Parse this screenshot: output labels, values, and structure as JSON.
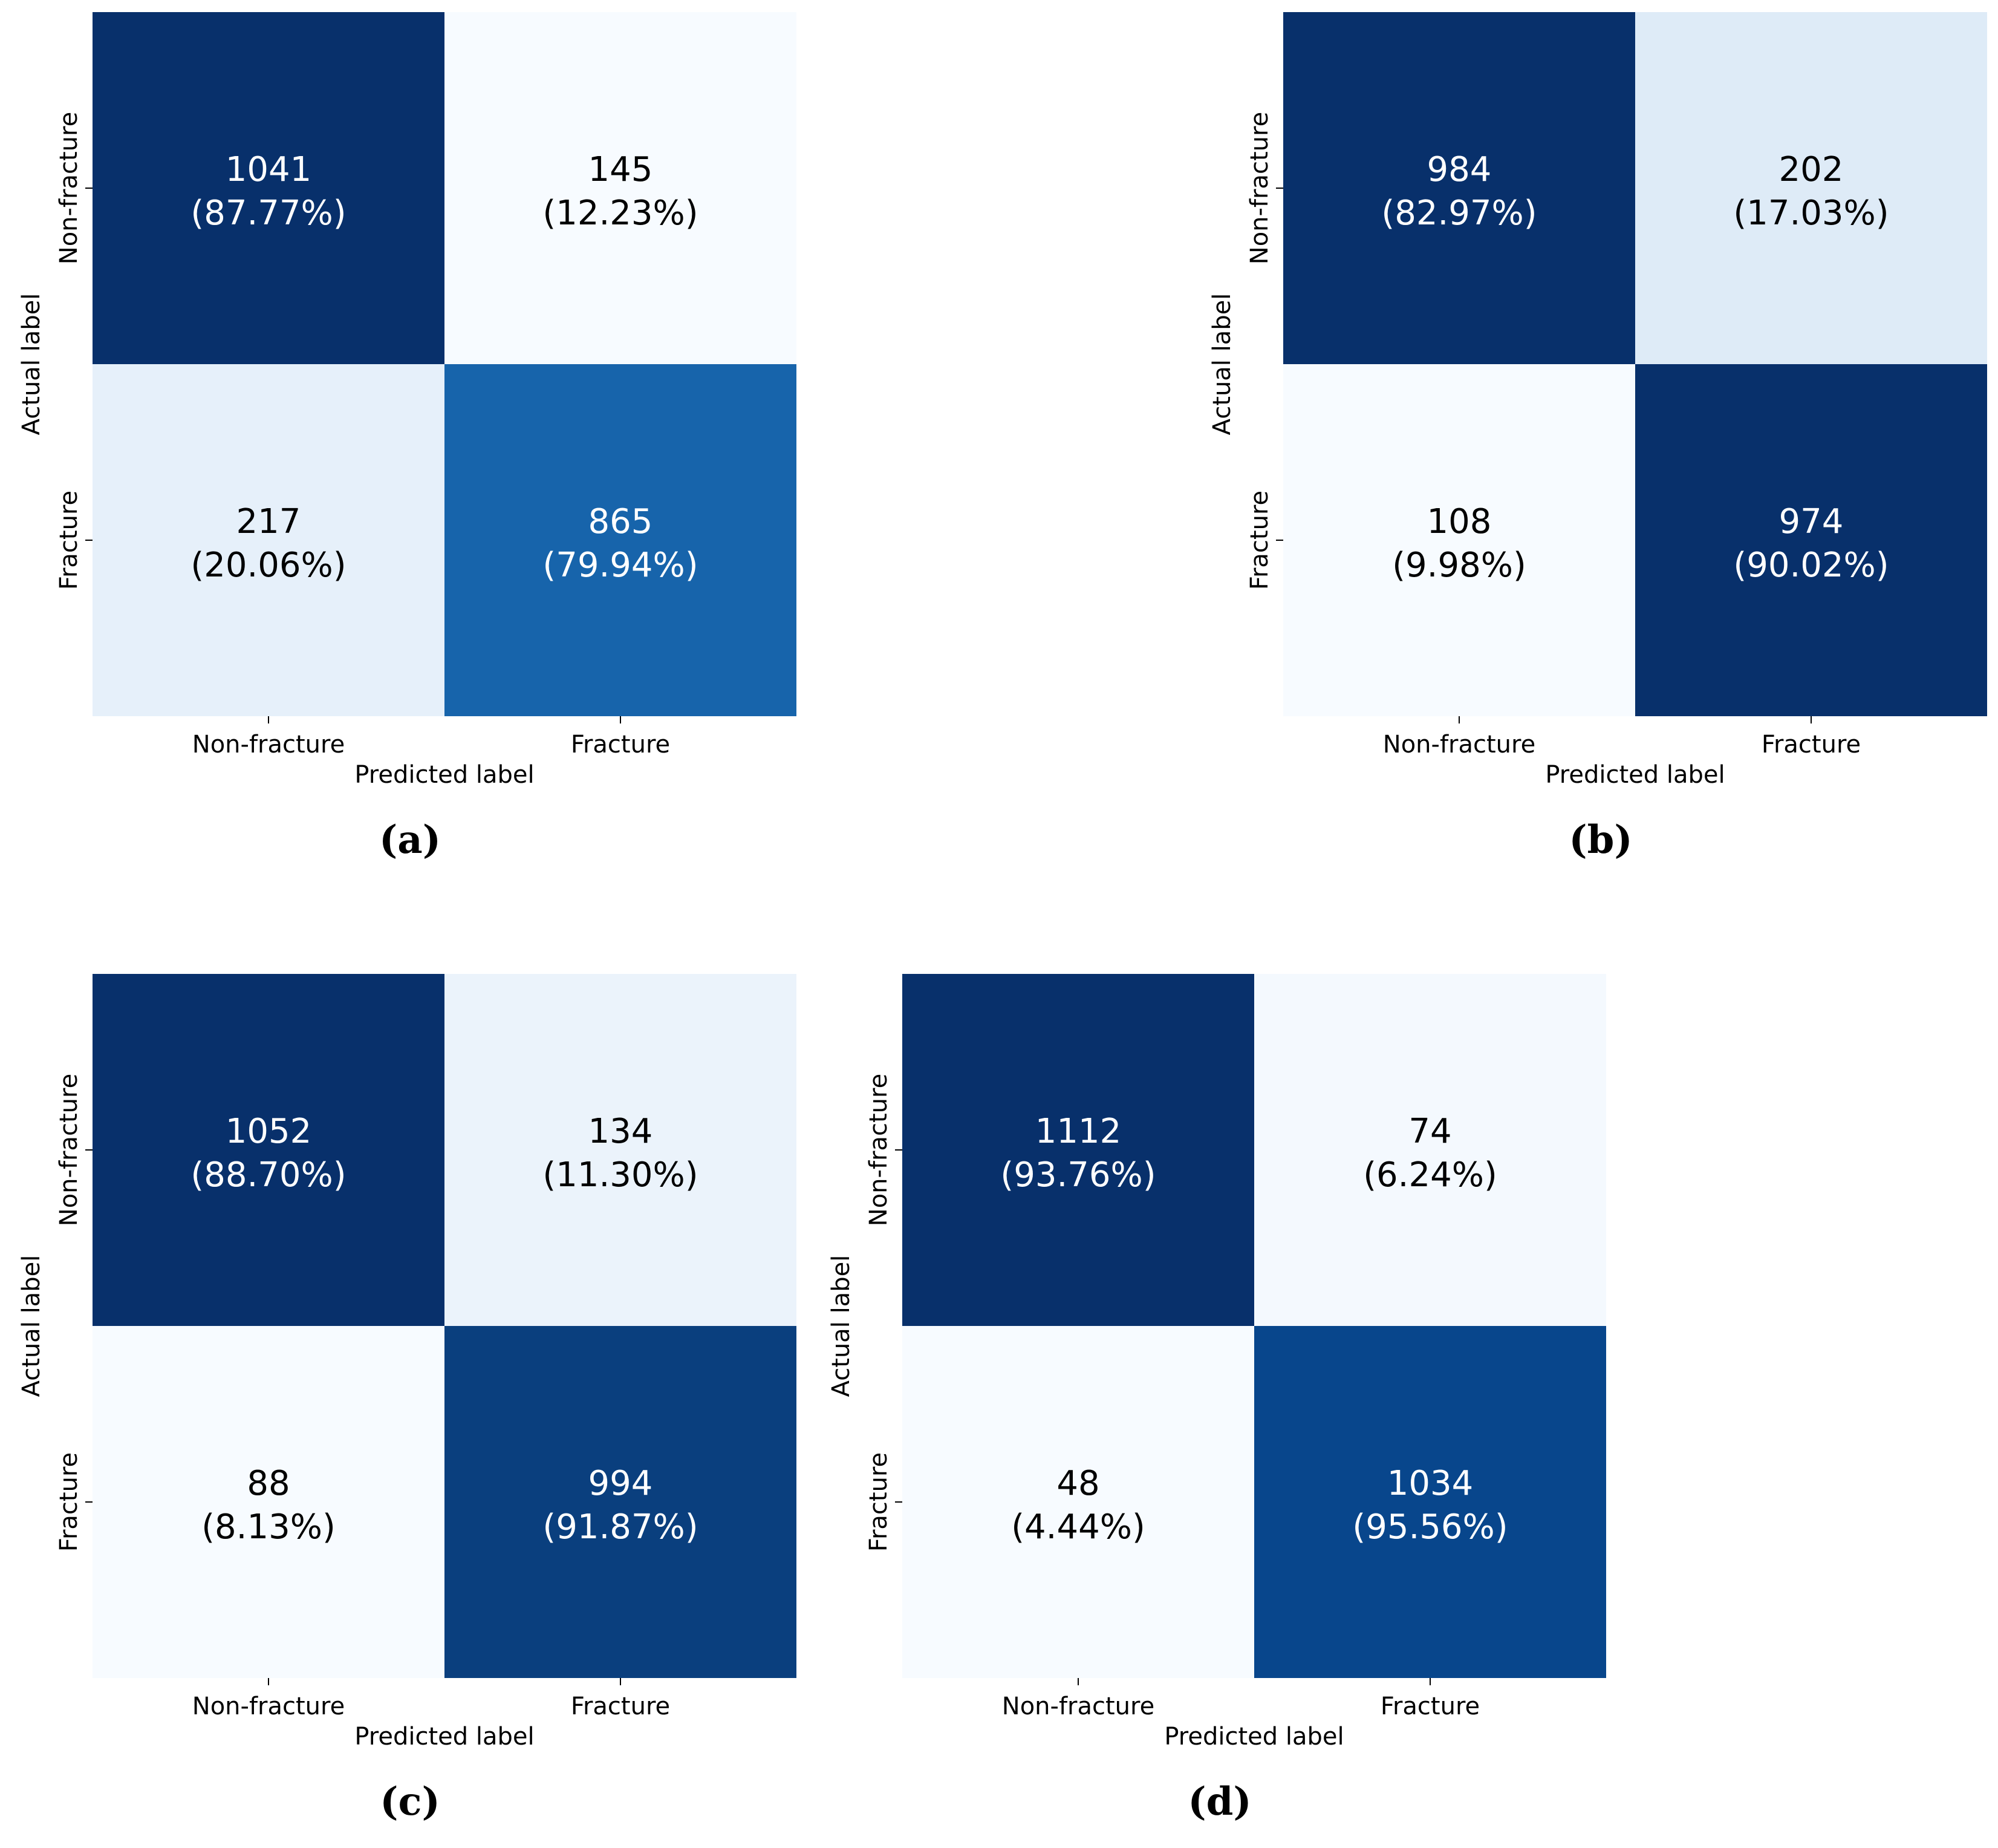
{
  "chart_data": [
    {
      "type": "heatmap",
      "panel_label": "(a)",
      "xlabel": "Predicted label",
      "ylabel": "Actual label",
      "x_categories": [
        "Non-fracture",
        "Fracture"
      ],
      "y_categories": [
        "Non-fracture",
        "Fracture"
      ],
      "counts": [
        [
          1041,
          145
        ],
        [
          217,
          865
        ]
      ],
      "percent_labels": [
        [
          "(87.77%)",
          "(12.23%)"
        ],
        [
          "(20.06%)",
          "(79.94%)"
        ]
      ],
      "colors": [
        [
          "#08306b",
          "#f7fbff"
        ],
        [
          "#e6f0fa",
          "#1764ab"
        ]
      ],
      "text_colors": [
        [
          "#ffffff",
          "#000000"
        ],
        [
          "#000000",
          "#ffffff"
        ]
      ]
    },
    {
      "type": "heatmap",
      "panel_label": "(b)",
      "xlabel": "Predicted label",
      "ylabel": "Actual label",
      "x_categories": [
        "Non-fracture",
        "Fracture"
      ],
      "y_categories": [
        "Non-fracture",
        "Fracture"
      ],
      "counts": [
        [
          984,
          202
        ],
        [
          108,
          974
        ]
      ],
      "percent_labels": [
        [
          "(82.97%)",
          "(17.03%)"
        ],
        [
          "(9.98%)",
          "(90.02%)"
        ]
      ],
      "colors": [
        [
          "#08306b",
          "#deebf7"
        ],
        [
          "#f7fbff",
          "#08306b"
        ]
      ],
      "text_colors": [
        [
          "#ffffff",
          "#000000"
        ],
        [
          "#000000",
          "#ffffff"
        ]
      ]
    },
    {
      "type": "heatmap",
      "panel_label": "(c)",
      "xlabel": "Predicted label",
      "ylabel": "Actual label",
      "x_categories": [
        "Non-fracture",
        "Fracture"
      ],
      "y_categories": [
        "Non-fracture",
        "Fracture"
      ],
      "counts": [
        [
          1052,
          134
        ],
        [
          88,
          994
        ]
      ],
      "percent_labels": [
        [
          "(88.70%)",
          "(11.30%)"
        ],
        [
          "(8.13%)",
          "(91.87%)"
        ]
      ],
      "colors": [
        [
          "#08306b",
          "#ebf3fb"
        ],
        [
          "#f7fbff",
          "#0a3f7e"
        ]
      ],
      "text_colors": [
        [
          "#ffffff",
          "#000000"
        ],
        [
          "#000000",
          "#ffffff"
        ]
      ]
    },
    {
      "type": "heatmap",
      "panel_label": "(d)",
      "xlabel": "Predicted label",
      "ylabel": "Actual label",
      "x_categories": [
        "Non-fracture",
        "Fracture"
      ],
      "y_categories": [
        "Non-fracture",
        "Fracture"
      ],
      "counts": [
        [
          1112,
          74
        ],
        [
          48,
          1034
        ]
      ],
      "percent_labels": [
        [
          "(93.76%)",
          "(6.24%)"
        ],
        [
          "(4.44%)",
          "(95.56%)"
        ]
      ],
      "colors": [
        [
          "#08306b",
          "#f4f9fe"
        ],
        [
          "#f7fbff",
          "#08468c"
        ]
      ],
      "text_colors": [
        [
          "#ffffff",
          "#000000"
        ],
        [
          "#000000",
          "#ffffff"
        ]
      ]
    }
  ]
}
